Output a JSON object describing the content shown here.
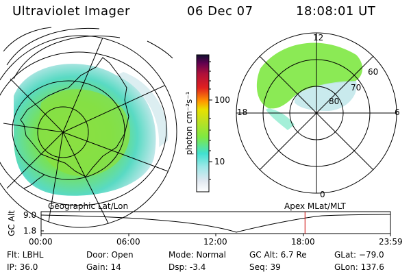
{
  "header": {
    "instrument": "Ultraviolet Imager",
    "date": "06 Dec 07",
    "time": "18:08:01 UT"
  },
  "colorbar": {
    "unit_label": "photon cm⁻²s⁻¹",
    "ticks": [
      "100",
      "10"
    ],
    "scale": "log",
    "colors": [
      "#ffffff",
      "#e0e8f0",
      "#9fe8e8",
      "#40e0d0",
      "#7ee842",
      "#c0e020",
      "#e8e000",
      "#ff9800",
      "#e02020",
      "#b0103a",
      "#600050",
      "#101030"
    ]
  },
  "polar": {
    "mlt_labels": [
      "12",
      "18",
      "6",
      "0"
    ],
    "lat_labels": [
      "60",
      "70",
      "80"
    ]
  },
  "timeline": {
    "y_axis_label": "GC Alt",
    "y_ticks": [
      "9.0",
      "1.8"
    ],
    "left_caption": "Geographic Lat/Lon",
    "right_caption": "Apex MLat/MLT",
    "x_ticks": [
      "00:00",
      "06:00",
      "12:00",
      "18:00",
      "23:59"
    ],
    "marker_time_hours": 18.13,
    "marker_color": "#cc0000"
  },
  "info": {
    "flt": "Flt: LBHL",
    "ip": "IP: 36.0",
    "door": "Door: Open",
    "gain": "Gain: 14",
    "mode": "Mode: Normal",
    "dsp": "Dsp:    -3.4",
    "gcalt": "GC Alt: 6.7 Re",
    "seq": "Seq: 39",
    "glat": "GLat: −79.0",
    "glon": "GLon: 137.6"
  }
}
